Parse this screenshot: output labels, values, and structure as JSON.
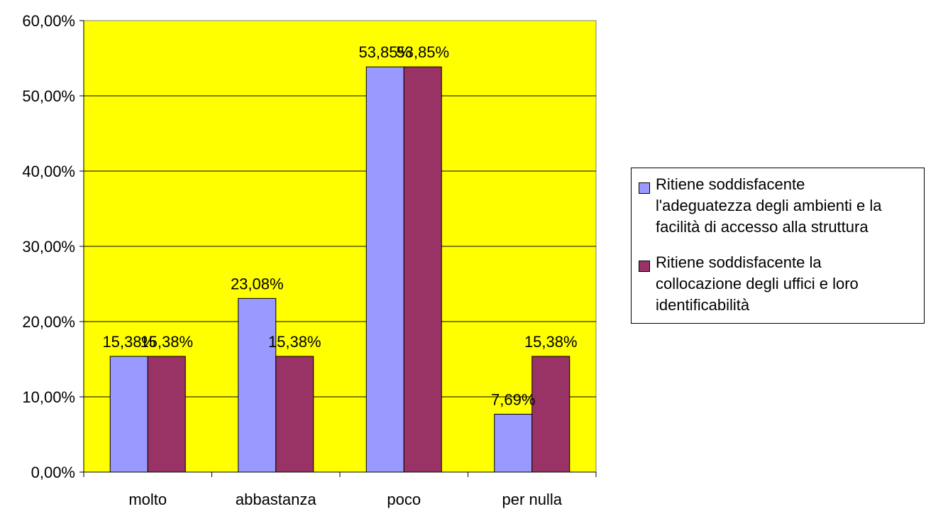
{
  "chart_data": {
    "type": "bar",
    "title": "",
    "xlabel": "",
    "ylabel": "",
    "categories": [
      "molto",
      "abbastanza",
      "poco",
      "per nulla"
    ],
    "ylim": [
      0,
      60
    ],
    "yticks": [
      "0,00%",
      "10,00%",
      "20,00%",
      "30,00%",
      "40,00%",
      "50,00%",
      "60,00%"
    ],
    "grid": true,
    "legend_position": "right",
    "plot_background": "#ffff00",
    "series": [
      {
        "name": "Ritiene soddisfacente l'adeguatezza degli ambienti e la facilità di accesso alla struttura",
        "color": "#9999ff",
        "values": [
          15.38,
          23.08,
          53.85,
          7.69
        ],
        "labels": [
          "15,38%",
          "23,08%",
          "53,85%",
          "7,69%"
        ]
      },
      {
        "name": "Ritiene soddisfacente la collocazione degli uffici e loro identificabilità",
        "color": "#993366",
        "values": [
          15.38,
          15.38,
          53.85,
          15.38
        ],
        "labels": [
          "15,38%",
          "15,38%",
          "53,85%",
          "15,38%"
        ]
      }
    ]
  },
  "legend": {
    "items": [
      {
        "lines": [
          "Ritiene soddisfacente",
          "l'adeguatezza degli ambienti e la",
          "facilità di accesso alla struttura"
        ]
      },
      {
        "lines": [
          "Ritiene soddisfacente la",
          "collocazione degli uffici e loro",
          "identificabilità"
        ]
      }
    ]
  }
}
